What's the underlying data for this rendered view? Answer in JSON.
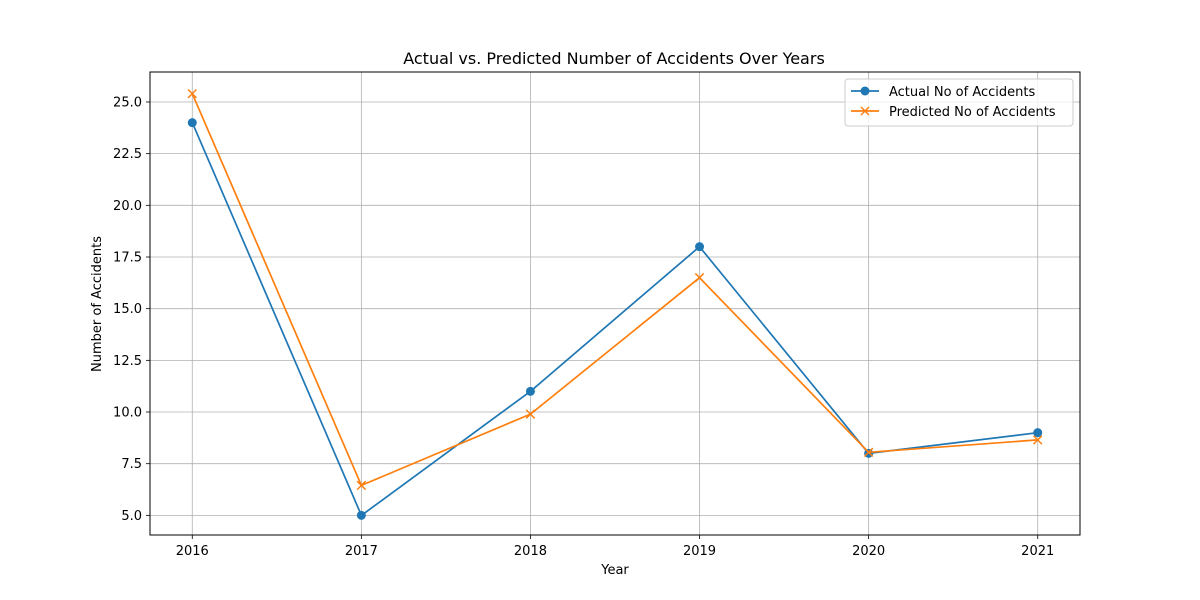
{
  "chart_data": {
    "type": "line",
    "title": "Actual vs. Predicted Number of Accidents Over Years",
    "xlabel": "Year",
    "ylabel": "Number of Accidents",
    "x": [
      2016,
      2017,
      2018,
      2019,
      2020,
      2021
    ],
    "x_tick_labels": [
      "2016",
      "2017",
      "2018",
      "2019",
      "2020",
      "2021"
    ],
    "xlim": [
      2015.75,
      2021.25
    ],
    "ylim": [
      4.05,
      26.45
    ],
    "y_ticks": [
      5.0,
      7.5,
      10.0,
      12.5,
      15.0,
      17.5,
      20.0,
      22.5,
      25.0
    ],
    "y_tick_labels": [
      "5.0",
      "7.5",
      "10.0",
      "12.5",
      "15.0",
      "17.5",
      "20.0",
      "22.5",
      "25.0"
    ],
    "grid": true,
    "legend_position": "top-right",
    "series": [
      {
        "name": "Actual No of Accidents",
        "values": [
          24,
          5,
          11,
          18,
          8,
          9
        ],
        "color": "#1f77b4",
        "marker": "circle"
      },
      {
        "name": "Predicted No of Accidents",
        "values": [
          25.4,
          6.45,
          9.9,
          16.5,
          8.05,
          8.65
        ],
        "color": "#ff7f0e",
        "marker": "x"
      }
    ]
  }
}
